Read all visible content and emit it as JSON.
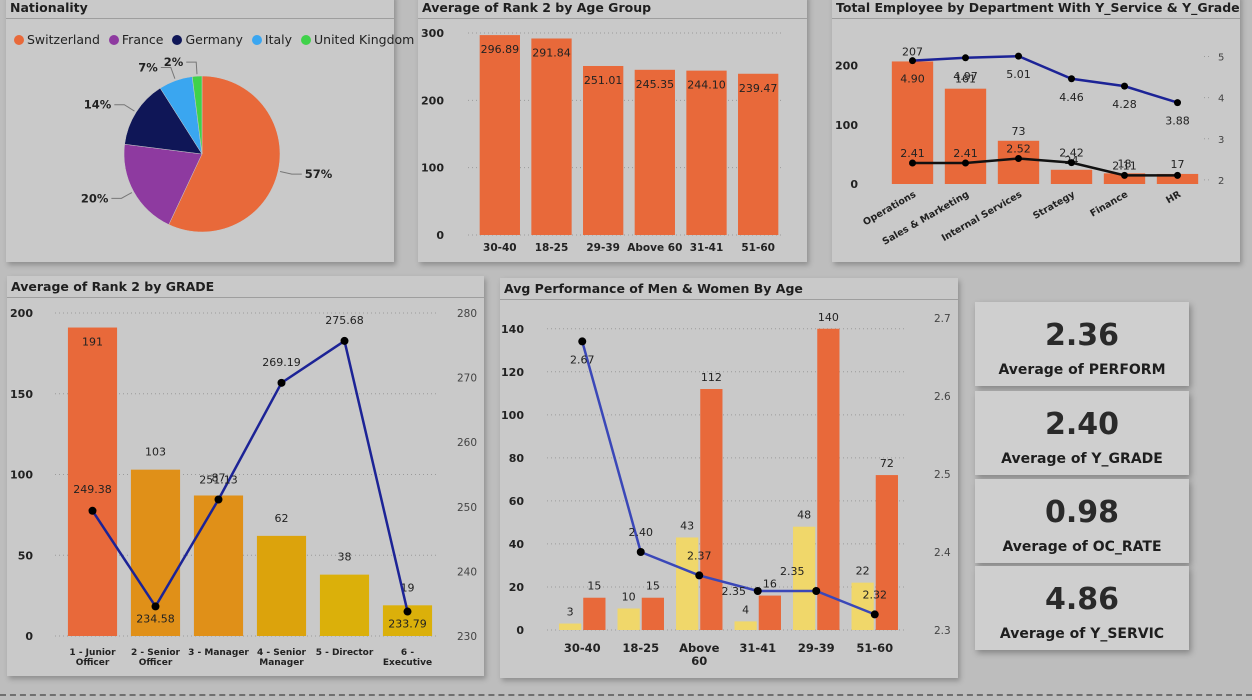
{
  "colors": {
    "orange": "#e8693a",
    "gold1": "#e09018",
    "gold2": "#dca30c",
    "gold3": "#dbb00a",
    "yellow": "#f0d76a",
    "navy": "#1c2396",
    "black": "#111111"
  },
  "kpis": [
    {
      "value": "2.36",
      "label": "Average of PERFORM"
    },
    {
      "value": "2.40",
      "label": "Average of Y_GRADE"
    },
    {
      "value": "0.98",
      "label": "Average of OC_RATE"
    },
    {
      "value": "4.86",
      "label": "Average of Y_SERVIC"
    }
  ],
  "chart_data": [
    {
      "id": "nationality",
      "type": "pie",
      "title": "Nationality",
      "legend": [
        "Switzerland",
        "France",
        "Germany",
        "Italy",
        "United Kingdom"
      ],
      "legend_placement": "top",
      "slices": [
        {
          "name": "Switzerland",
          "value": 57,
          "label": "57%",
          "color": "#e8693a"
        },
        {
          "name": "France",
          "value": 20,
          "label": "20%",
          "color": "#8e3aa0"
        },
        {
          "name": "Germany",
          "value": 14,
          "label": "14%",
          "color": "#0f1657"
        },
        {
          "name": "Italy",
          "value": 7,
          "label": "7%",
          "color": "#3aa6f0"
        },
        {
          "name": "United Kingdom",
          "value": 2,
          "label": "2%",
          "color": "#3fd24a"
        }
      ]
    },
    {
      "id": "rank_age",
      "type": "bar",
      "title": "Average of Rank 2 by Age Group",
      "categories": [
        "30-40",
        "18-25",
        "29-39",
        "Above 60",
        "31-41",
        "51-60"
      ],
      "values": [
        296.89,
        291.84,
        251.01,
        245.35,
        244.1,
        239.47
      ],
      "value_labels": [
        "296.89",
        "291.84",
        "251.01",
        "245.35",
        "244.10",
        "239.47"
      ],
      "ylim": [
        0,
        300
      ],
      "yticks": [
        "0",
        "100",
        "200",
        "300"
      ]
    },
    {
      "id": "dept",
      "type": "bar",
      "title": "Total Employee by Department With Y_Service & Y_Grade",
      "categories": [
        "Operations",
        "Sales & Marketing",
        "Internal Services",
        "Strategy",
        "Finance",
        "HR"
      ],
      "values": [
        207,
        161,
        73,
        24,
        18,
        17
      ],
      "ylim": [
        0,
        250
      ],
      "yticks": [
        "0",
        "100",
        "200"
      ],
      "y2lim": [
        1.9,
        5.5
      ],
      "y2ticks": [
        "2",
        "3",
        "4",
        "5"
      ],
      "series": [
        {
          "name": "Y_Service",
          "values": [
            4.9,
            4.97,
            5.01,
            4.46,
            4.28,
            3.88
          ],
          "labels": [
            "4.90",
            "4.97",
            "5.01",
            "4.46",
            "4.28",
            "3.88"
          ]
        },
        {
          "name": "Y_Grade",
          "values": [
            2.41,
            2.41,
            2.52,
            2.42,
            2.11,
            2.11
          ],
          "labels": [
            "2.41",
            "2.41",
            "2.52",
            "2.42",
            "2.11",
            ""
          ]
        }
      ]
    },
    {
      "id": "grade",
      "type": "bar",
      "title": "Average of Rank 2 by GRADE",
      "categories": [
        [
          "1 - Junior",
          "Officer"
        ],
        [
          "2 - Senior",
          "Officer"
        ],
        [
          "3 - Manager"
        ],
        [
          "4 - Senior",
          "Manager"
        ],
        [
          "5 - Director"
        ],
        [
          "6 -",
          "Executive"
        ]
      ],
      "values": [
        191,
        103,
        87,
        62,
        38,
        19
      ],
      "ylim": [
        0,
        200
      ],
      "yticks": [
        "0",
        "50",
        "100",
        "150",
        "200"
      ],
      "y2lim": [
        230,
        280
      ],
      "y2ticks": [
        "230",
        "240",
        "250",
        "260",
        "270",
        "280"
      ],
      "series": [
        {
          "name": "Average of Rank 2",
          "values": [
            249.38,
            234.58,
            251.13,
            269.19,
            275.68,
            233.79
          ],
          "labels": [
            "249.38",
            "234.58",
            "251.13",
            "269.19",
            "275.68",
            "233.79"
          ]
        }
      ]
    },
    {
      "id": "perf",
      "type": "bar",
      "title": "Avg Performance of Men & Women By Age",
      "categories": [
        [
          "30-40"
        ],
        [
          "18-25"
        ],
        [
          "Above",
          "60"
        ],
        [
          "31-41"
        ],
        [
          "29-39"
        ],
        [
          "51-60"
        ]
      ],
      "series": [
        {
          "name": "Women",
          "values": [
            3,
            10,
            43,
            4,
            48,
            22
          ]
        },
        {
          "name": "Men",
          "values": [
            15,
            15,
            112,
            16,
            140,
            72
          ]
        },
        {
          "name": "Performance",
          "values": [
            2.67,
            2.4,
            2.37,
            2.35,
            2.35,
            2.32
          ],
          "labels": [
            "2.67",
            "2.40",
            "2.37",
            "2.35",
            "2.35",
            "2.32"
          ]
        }
      ],
      "ylim": [
        0,
        145
      ],
      "yticks": [
        "0",
        "20",
        "40",
        "60",
        "80",
        "100",
        "120",
        "140"
      ],
      "y2lim": [
        2.3,
        2.7
      ],
      "y2ticks": [
        "2.3",
        "2.4",
        "2.5",
        "2.6",
        "2.7"
      ]
    }
  ]
}
